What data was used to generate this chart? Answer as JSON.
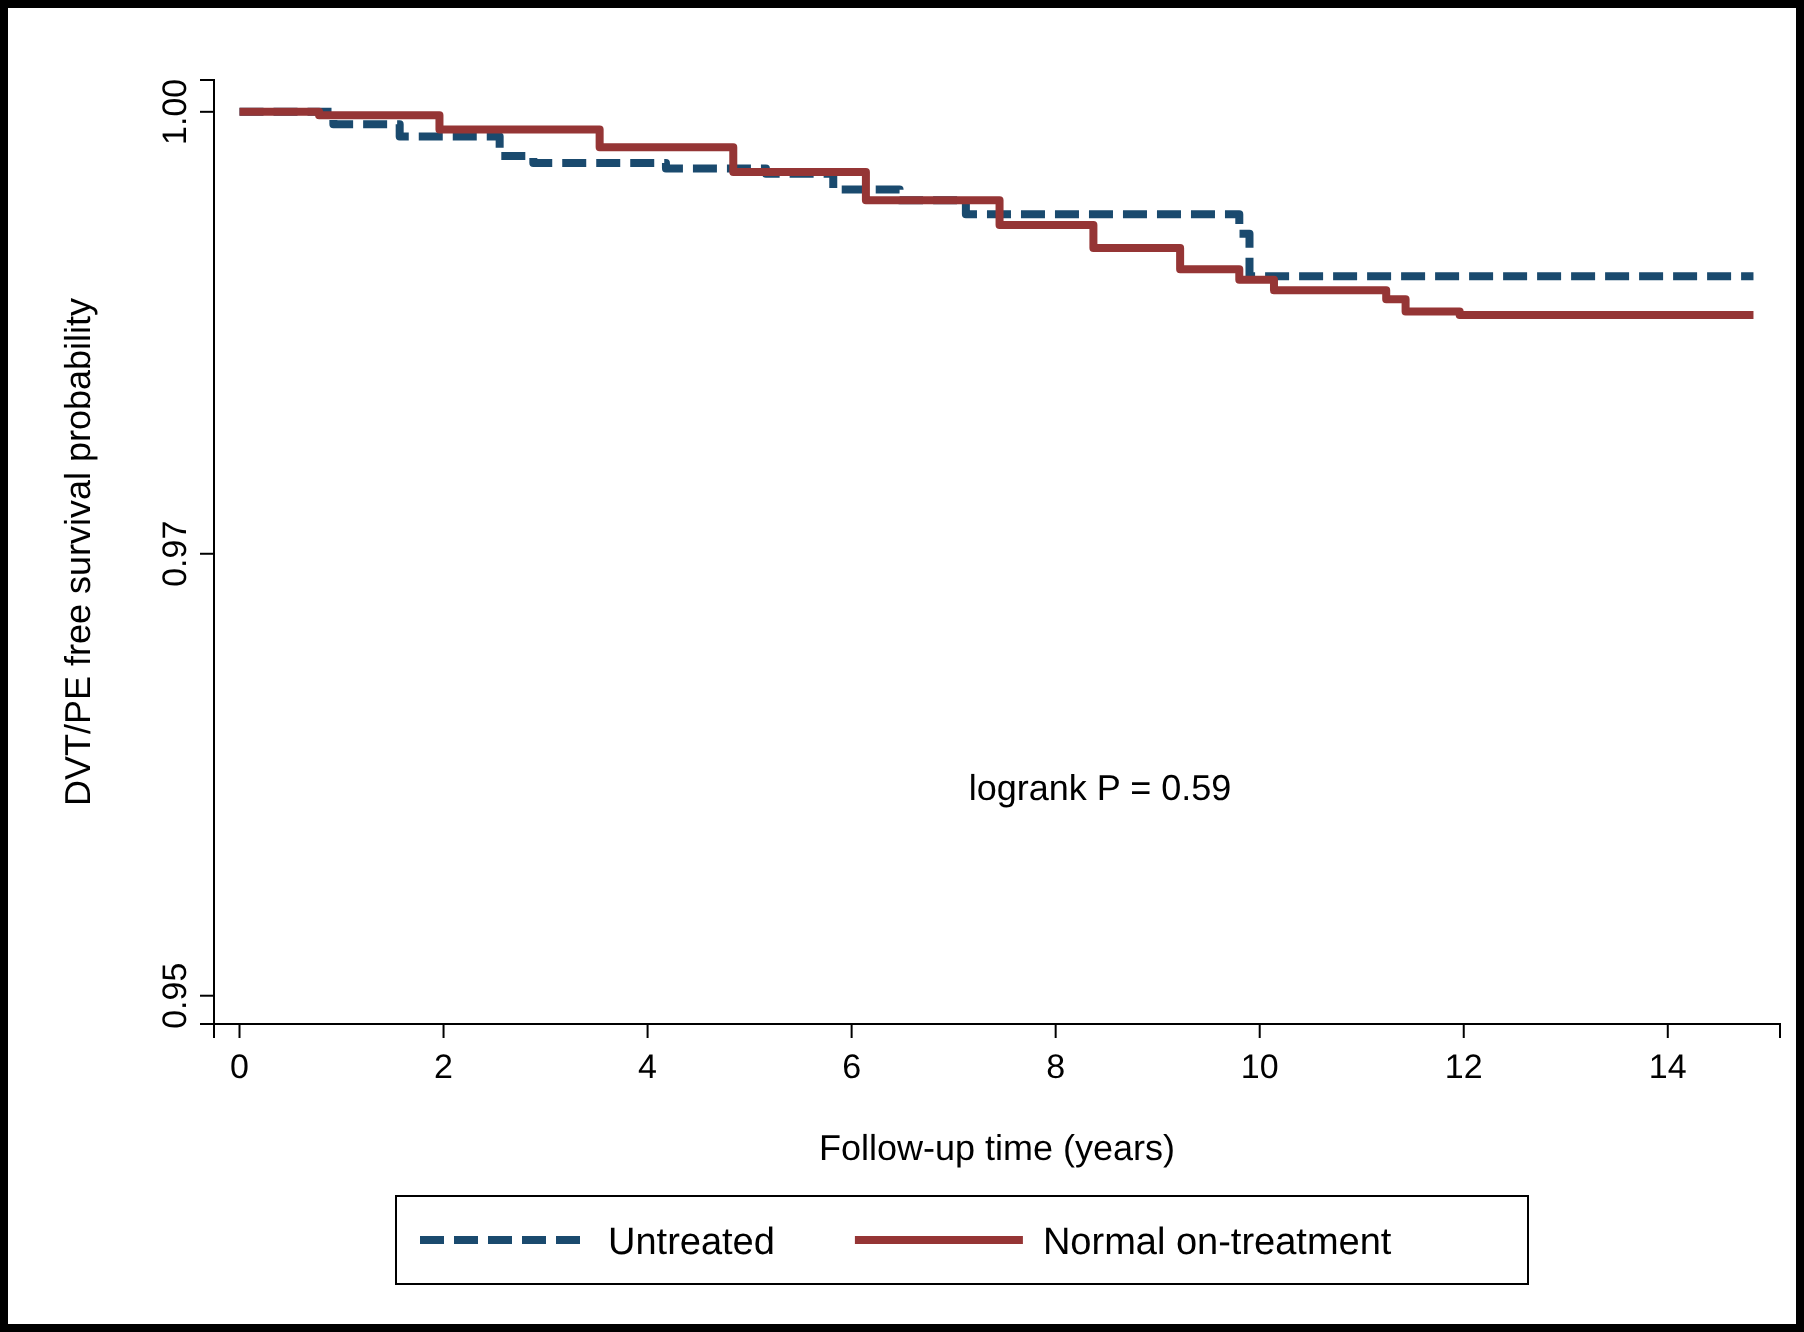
{
  "chart_data": {
    "type": "step",
    "xlabel": "Follow-up time (years)",
    "ylabel": "DVT/PE free survival probability",
    "xlim": [
      -0.25,
      15.1
    ],
    "xticks": [
      0,
      2,
      4,
      6,
      8,
      10,
      12,
      14
    ],
    "ylim": [
      0.9484,
      1.0018
    ],
    "yticks": [
      0.95,
      {
        "value": 0.975,
        "label": "0.97"
      },
      {
        "value": 1.0,
        "label": "1.00"
      }
    ],
    "grid": false,
    "legend": "bottom",
    "annotations": [
      "logrank P = 0.59"
    ],
    "series": [
      {
        "name": "Untreated",
        "color": "#1a4a6e",
        "line_style": "dashed",
        "x": [
          0,
          0.92,
          1.57,
          2.55,
          2.88,
          4.18,
          5.16,
          5.82,
          6.47,
          7.12,
          9.8,
          9.9,
          14.84
        ],
        "values": [
          1.0,
          0.9993,
          0.9986,
          0.9975,
          0.9971,
          0.9968,
          0.9965,
          0.9956,
          0.995,
          0.9942,
          0.9931,
          0.9907,
          0.9907
        ]
      },
      {
        "name": "Normal on-treatment",
        "color": "#953535",
        "line_style": "solid",
        "x": [
          0,
          0.78,
          1.96,
          3.53,
          4.84,
          6.14,
          7.45,
          8.37,
          9.22,
          9.8,
          10.14,
          11.24,
          11.43,
          11.96,
          14.84
        ],
        "values": [
          1.0,
          0.9998,
          0.999,
          0.998,
          0.9966,
          0.995,
          0.9936,
          0.9923,
          0.9911,
          0.9905,
          0.9899,
          0.9894,
          0.9887,
          0.9885,
          0.9885
        ]
      }
    ]
  }
}
